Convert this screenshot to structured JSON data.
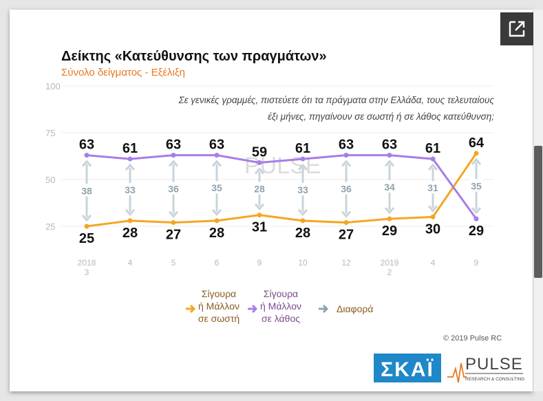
{
  "title": "Δείκτης «Κατεύθυνσης των πραγμάτων»",
  "subtitle": "Σύνολο δείγματος - Εξέλιξη",
  "question_lines": [
    "Σε γενικές γραμμές, πιστεύετε ότι τα πράγματα στην Ελλάδα, τους τελευταίους",
    "έξι μήνες, πηγαίνουν σε σωστή ή σε λάθος κατεύθυνση;"
  ],
  "copyright": "© 2019 Pulse RC",
  "watermark": "PULSE",
  "logos": {
    "skai": "ΣΚΑΪ",
    "pulse": "PULSE",
    "pulse_sub": "RESEARCH & CONSULTING"
  },
  "colors": {
    "right": "#f5a623",
    "wrong": "#a77de8",
    "diff": "#b7c7cf",
    "grid": "#ececec"
  },
  "chart_data": {
    "type": "line",
    "ylim": [
      0,
      100
    ],
    "yticks": [
      25,
      50,
      75,
      100
    ],
    "categories": [
      "2018\n3",
      "4",
      "5",
      "6",
      "9",
      "10",
      "12",
      "2019\n2",
      "4",
      "9"
    ],
    "series": [
      {
        "name": "Σίγουρα ή Μάλλον σε σωστή",
        "color": "#f5a623",
        "values": [
          25,
          28,
          27,
          28,
          31,
          28,
          27,
          29,
          30,
          64
        ]
      },
      {
        "name": "Σίγουρα ή Μάλλον σε λάθος",
        "color": "#a77de8",
        "values": [
          63,
          61,
          63,
          63,
          59,
          61,
          63,
          63,
          61,
          29
        ]
      },
      {
        "name": "Διαφορά",
        "color": "#b7c7cf",
        "values": [
          38,
          33,
          36,
          35,
          28,
          33,
          36,
          34,
          31,
          35
        ]
      }
    ],
    "legend": [
      {
        "lines": [
          "Σίγουρα",
          "ή Μάλλον",
          "σε σωστή"
        ],
        "color": "#f5a623"
      },
      {
        "lines": [
          "Σίγουρα",
          "ή Μάλλον",
          "σε λάθος"
        ],
        "color": "#a77de8"
      },
      {
        "lines": [
          "Διαφορά"
        ],
        "color": "#8fa2ac"
      }
    ],
    "legend_position": "bottom"
  }
}
